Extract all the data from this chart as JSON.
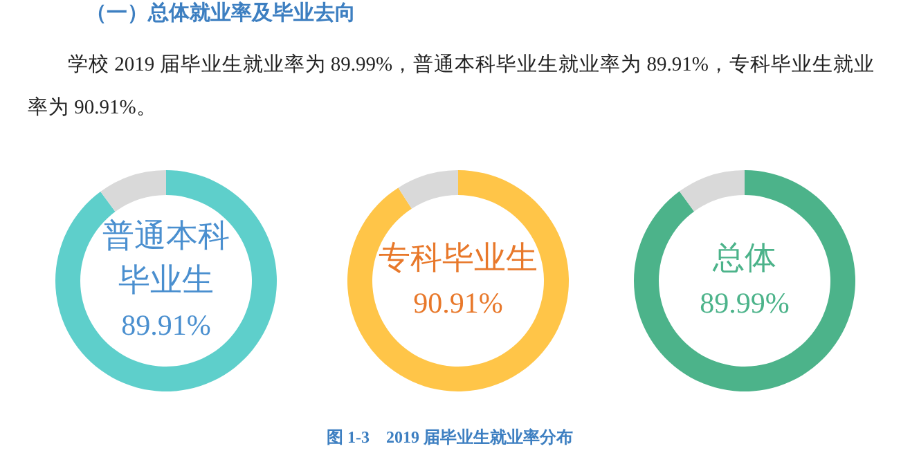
{
  "chart_data": [
    {
      "type": "donut",
      "categories": [
        "普通本科毕业生",
        null
      ],
      "values": [
        89.91,
        10.09
      ],
      "colors": [
        "#5ecfcb",
        "#d9d9d9"
      ],
      "value_labels": [
        "89.91%",
        null
      ],
      "annotations": [
        "（一）总体就业率及毕业去向",
        "学校 2019 届毕业生就业率为 89.99%，普通本科毕业生就业率为 89.91%，专科毕业生就业率为 90.91%。",
        "图 1-3　2019 届毕业生就业率分布"
      ]
    },
    {
      "type": "donut",
      "categories": [
        "专科毕业生",
        null
      ],
      "values": [
        90.91,
        9.09
      ],
      "colors": [
        "#ffc548",
        "#d9d9d9"
      ],
      "value_labels": [
        "90.91%",
        null
      ]
    },
    {
      "type": "donut",
      "categories": [
        "总体",
        null
      ],
      "values": [
        89.99,
        10.01
      ],
      "colors": [
        "#4cb38a",
        "#d9d9d9"
      ],
      "value_labels": [
        "89.99%",
        null
      ]
    }
  ]
}
